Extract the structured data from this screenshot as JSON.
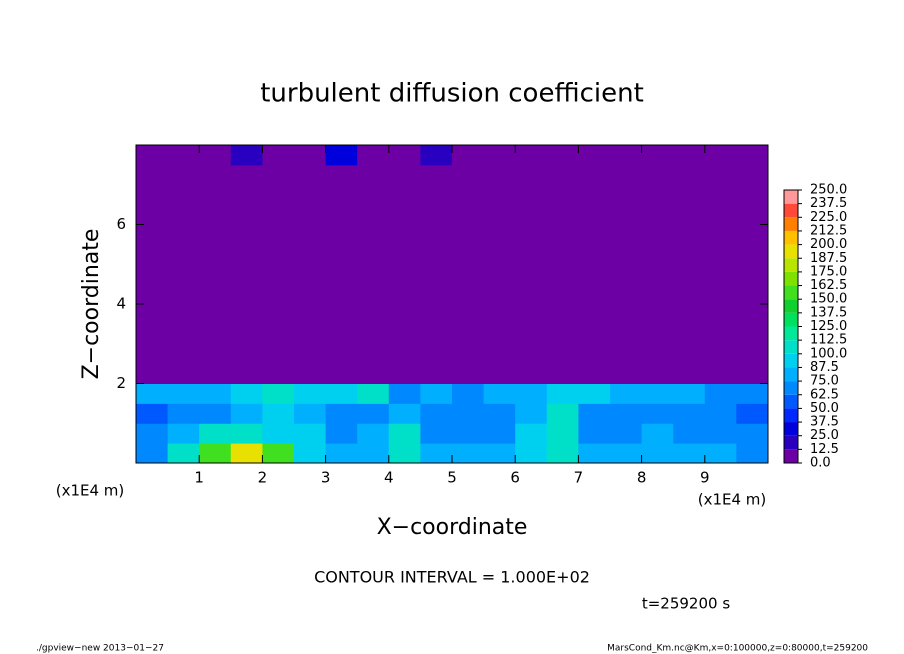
{
  "chart_data": {
    "type": "heatmap",
    "title": "turbulent diffusion coefficient",
    "x_label": "X−coordinate",
    "y_label": "Z−coordinate",
    "x_unit_label": "(x1E4 m)",
    "contour_note": "CONTOUR INTERVAL = 1.000E+02",
    "time_note": "t=259200 s",
    "footer_left": "./gpview−new   2013−01−27",
    "footer_right": "MarsCond_Km.nc@Km,x=0:100000,z=0:80000,t=259200",
    "xlim": [
      0,
      10
    ],
    "ylim": [
      0,
      8
    ],
    "xticks": [
      1,
      2,
      3,
      4,
      5,
      6,
      7,
      8,
      9
    ],
    "yticks": [
      2,
      4,
      6
    ],
    "x": [
      0.25,
      0.75,
      1.25,
      1.75,
      2.25,
      2.75,
      3.25,
      3.75,
      4.25,
      4.75,
      5.25,
      5.75,
      6.25,
      6.75,
      7.25,
      7.75,
      8.25,
      8.75,
      9.25,
      9.75
    ],
    "y": [
      0.25,
      0.75,
      1.25,
      1.75,
      2.25,
      2.75,
      3.25,
      3.75,
      4.25,
      4.75,
      5.25,
      5.75,
      6.25,
      6.75,
      7.25,
      7.75
    ],
    "z": [
      [
        70,
        100,
        150,
        190,
        150,
        90,
        80,
        85,
        100,
        80,
        80,
        85,
        90,
        100,
        80,
        75,
        80,
        85,
        75,
        70
      ],
      [
        65,
        75,
        100,
        110,
        90,
        95,
        70,
        75,
        110,
        70,
        65,
        70,
        95,
        100,
        70,
        70,
        75,
        70,
        70,
        65
      ],
      [
        60,
        70,
        70,
        80,
        95,
        80,
        70,
        65,
        80,
        70,
        65,
        70,
        80,
        100,
        70,
        65,
        70,
        70,
        65,
        60
      ],
      [
        75,
        75,
        80,
        95,
        100,
        95,
        90,
        100,
        70,
        75,
        70,
        75,
        85,
        95,
        90,
        80,
        75,
        75,
        70,
        70
      ],
      [
        0,
        0,
        0,
        0,
        0,
        0,
        0,
        0,
        0,
        0,
        0,
        0,
        0,
        0,
        0,
        0,
        0,
        0,
        0,
        0
      ],
      [
        0,
        0,
        0,
        0,
        0,
        0,
        0,
        0,
        0,
        0,
        0,
        0,
        0,
        0,
        0,
        0,
        0,
        0,
        0,
        0
      ],
      [
        0,
        0,
        0,
        0,
        0,
        0,
        0,
        0,
        0,
        0,
        0,
        0,
        0,
        0,
        0,
        0,
        0,
        0,
        0,
        0
      ],
      [
        0,
        0,
        0,
        0,
        0,
        0,
        0,
        0,
        0,
        0,
        0,
        0,
        0,
        0,
        0,
        0,
        0,
        0,
        0,
        0
      ],
      [
        0,
        0,
        0,
        0,
        0,
        0,
        0,
        0,
        0,
        0,
        0,
        0,
        0,
        0,
        0,
        0,
        0,
        0,
        0,
        0
      ],
      [
        0,
        0,
        0,
        0,
        0,
        0,
        0,
        0,
        0,
        0,
        0,
        0,
        0,
        0,
        0,
        0,
        0,
        0,
        0,
        0
      ],
      [
        0,
        0,
        0,
        0,
        0,
        0,
        0,
        0,
        0,
        0,
        0,
        0,
        0,
        0,
        0,
        0,
        0,
        0,
        0,
        0
      ],
      [
        0,
        0,
        0,
        0,
        0,
        0,
        0,
        0,
        0,
        0,
        0,
        0,
        0,
        0,
        0,
        0,
        0,
        0,
        0,
        0
      ],
      [
        0,
        0,
        0,
        0,
        0,
        0,
        0,
        0,
        0,
        0,
        0,
        0,
        0,
        0,
        0,
        0,
        0,
        0,
        0,
        0
      ],
      [
        0,
        0,
        0,
        0,
        0,
        0,
        0,
        0,
        0,
        0,
        0,
        0,
        0,
        0,
        0,
        0,
        0,
        0,
        0,
        0
      ],
      [
        0,
        0,
        0,
        0,
        0,
        0,
        0,
        0,
        0,
        0,
        0,
        0,
        0,
        0,
        0,
        0,
        0,
        0,
        0,
        0
      ],
      [
        0,
        0,
        10,
        20,
        0,
        0,
        30,
        0,
        10,
        20,
        0,
        0,
        0,
        0,
        0,
        0,
        0,
        0,
        10,
        0
      ]
    ],
    "colorbar_ticks": [
      {
        "value": 0,
        "label": "0.0"
      },
      {
        "value": 12.5,
        "label": "12.5"
      },
      {
        "value": 25,
        "label": "25.0"
      },
      {
        "value": 37.5,
        "label": "37.5"
      },
      {
        "value": 50,
        "label": "50.0"
      },
      {
        "value": 62.5,
        "label": "62.5"
      },
      {
        "value": 75,
        "label": "75.0"
      },
      {
        "value": 87.5,
        "label": "87.5"
      },
      {
        "value": 100,
        "label": "100.0"
      },
      {
        "value": 112.5,
        "label": "112.5"
      },
      {
        "value": 125,
        "label": "125.0"
      },
      {
        "value": 137.5,
        "label": "137.5"
      },
      {
        "value": 150,
        "label": "150.0"
      },
      {
        "value": 162.5,
        "label": "162.5"
      },
      {
        "value": 175,
        "label": "175.0"
      },
      {
        "value": 187.5,
        "label": "187.5"
      },
      {
        "value": 200,
        "label": "200.0"
      },
      {
        "value": 212.5,
        "label": "212.5"
      },
      {
        "value": 225,
        "label": "225.0"
      },
      {
        "value": 237.5,
        "label": "237.5"
      },
      {
        "value": 250,
        "label": "250.0"
      }
    ],
    "colors": [
      "#6c00a4",
      "#2a00c0",
      "#0000dc",
      "#0028ff",
      "#0058ff",
      "#0088ff",
      "#00b0ff",
      "#00d0f0",
      "#00e0c8",
      "#00e898",
      "#00e060",
      "#10d030",
      "#40e020",
      "#80e000",
      "#b8e400",
      "#e8e000",
      "#ffc000",
      "#ff8000",
      "#ff4a3a",
      "#ff9898"
    ]
  }
}
